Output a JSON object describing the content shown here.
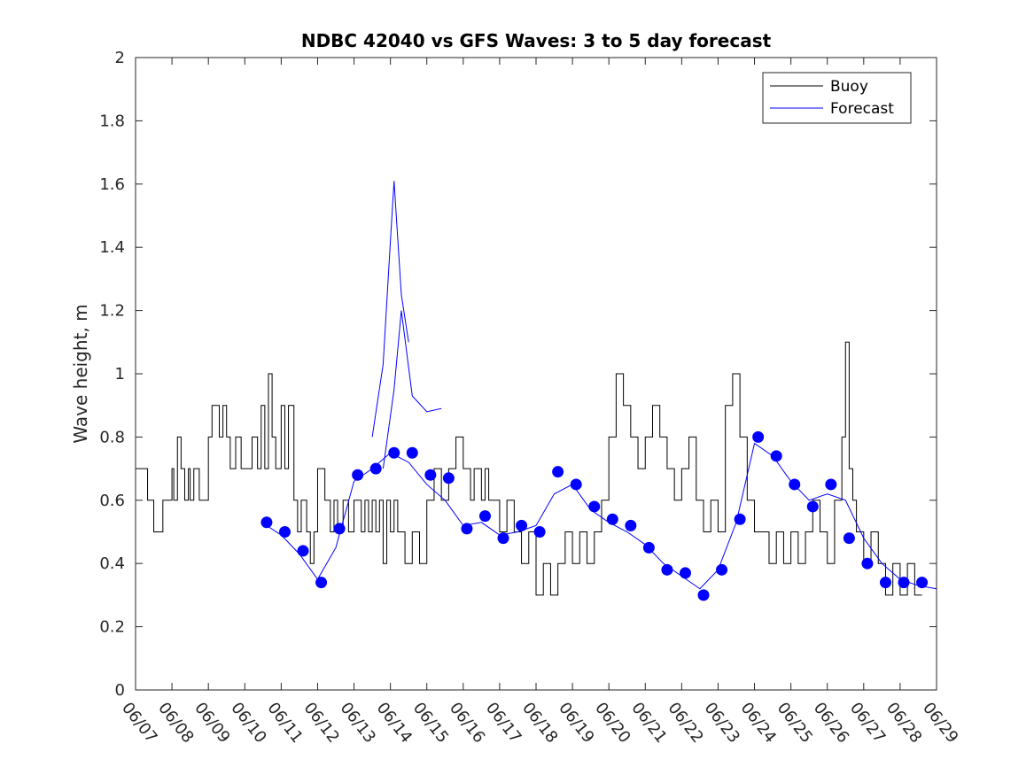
{
  "chart_data": {
    "type": "line",
    "title": "NDBC 42040 vs GFS Waves: 3 to 5 day forecast",
    "xlabel": "",
    "ylabel": "Wave height, m",
    "x_ticks": [
      "06/07",
      "06/08",
      "06/09",
      "06/10",
      "06/11",
      "06/12",
      "06/13",
      "06/14",
      "06/15",
      "06/16",
      "06/17",
      "06/18",
      "06/19",
      "06/20",
      "06/21",
      "06/22",
      "06/23",
      "06/24",
      "06/25",
      "06/26",
      "06/27",
      "06/28",
      "06/29"
    ],
    "y_ticks": [
      "0",
      "0.2",
      "0.4",
      "0.6",
      "0.8",
      "1",
      "1.2",
      "1.4",
      "1.6",
      "1.8",
      "2"
    ],
    "xlim_days": [
      0,
      22
    ],
    "ylim": [
      0,
      2
    ],
    "grid": false,
    "legend": {
      "placement": "top-right",
      "entries": [
        {
          "label": "Buoy",
          "color": "#000000"
        },
        {
          "label": "Forecast",
          "color": "#0000ff"
        }
      ]
    },
    "colors": {
      "buoy": "#000000",
      "forecast": "#0000ff"
    },
    "series": [
      {
        "name": "Buoy",
        "style": "step",
        "x": [
          0.0,
          0.33,
          0.5,
          0.55,
          0.75,
          1.0,
          1.05,
          1.15,
          1.25,
          1.35,
          1.45,
          1.5,
          1.6,
          1.75,
          1.85,
          2.0,
          2.1,
          2.3,
          2.4,
          2.5,
          2.6,
          2.75,
          2.9,
          3.0,
          3.2,
          3.35,
          3.45,
          3.55,
          3.65,
          3.75,
          3.85,
          4.0,
          4.1,
          4.2,
          4.35,
          4.45,
          4.55,
          4.7,
          4.8,
          4.9,
          5.0,
          5.2,
          5.35,
          5.45,
          5.55,
          5.7,
          5.85,
          6.0,
          6.2,
          6.3,
          6.4,
          6.5,
          6.6,
          6.7,
          6.8,
          6.9,
          7.0,
          7.1,
          7.2,
          7.4,
          7.6,
          7.8,
          8.0,
          8.2,
          8.4,
          8.6,
          8.8,
          9.0,
          9.2,
          9.3,
          9.5,
          9.6,
          9.7,
          9.8,
          10.0,
          10.2,
          10.4,
          10.6,
          10.8,
          11.0,
          11.2,
          11.4,
          11.6,
          11.8,
          12.0,
          12.2,
          12.4,
          12.6,
          12.8,
          13.0,
          13.2,
          13.4,
          13.6,
          13.8,
          14.0,
          14.2,
          14.4,
          14.6,
          14.8,
          15.0,
          15.2,
          15.4,
          15.6,
          15.8,
          16.0,
          16.2,
          16.4,
          16.6,
          16.8,
          17.0,
          17.2,
          17.4,
          17.6,
          17.8,
          18.0,
          18.2,
          18.4,
          18.6,
          18.8,
          19.0,
          19.2,
          19.4,
          19.5,
          19.6,
          19.7,
          19.8,
          20.0,
          20.2,
          20.4,
          20.6,
          20.8,
          21.0,
          21.2,
          21.4,
          21.6
        ],
        "y": [
          0.7,
          0.6,
          0.5,
          0.5,
          0.6,
          0.7,
          0.6,
          0.8,
          0.7,
          0.6,
          0.7,
          0.6,
          0.7,
          0.6,
          0.6,
          0.8,
          0.9,
          0.8,
          0.9,
          0.8,
          0.7,
          0.8,
          0.7,
          0.7,
          0.8,
          0.7,
          0.9,
          0.7,
          1.0,
          0.8,
          0.7,
          0.9,
          0.7,
          0.9,
          0.6,
          0.5,
          0.6,
          0.5,
          0.4,
          0.5,
          0.7,
          0.6,
          0.5,
          0.6,
          0.5,
          0.6,
          0.5,
          0.6,
          0.5,
          0.6,
          0.5,
          0.6,
          0.5,
          0.6,
          0.4,
          0.6,
          0.5,
          0.6,
          0.5,
          0.4,
          0.5,
          0.4,
          0.6,
          0.7,
          0.6,
          0.7,
          0.8,
          0.7,
          0.6,
          0.7,
          0.6,
          0.7,
          0.6,
          0.6,
          0.5,
          0.6,
          0.5,
          0.4,
          0.5,
          0.3,
          0.4,
          0.3,
          0.4,
          0.5,
          0.4,
          0.5,
          0.4,
          0.5,
          0.6,
          0.8,
          1.0,
          0.9,
          0.8,
          0.7,
          0.8,
          0.9,
          0.8,
          0.7,
          0.6,
          0.7,
          0.8,
          0.6,
          0.5,
          0.6,
          0.5,
          0.9,
          1.0,
          0.8,
          0.6,
          0.5,
          0.5,
          0.4,
          0.5,
          0.4,
          0.5,
          0.4,
          0.5,
          0.6,
          0.5,
          0.4,
          0.6,
          0.8,
          1.1,
          0.7,
          0.6,
          0.5,
          0.4,
          0.5,
          0.4,
          0.3,
          0.4,
          0.3,
          0.4,
          0.3,
          0.3
        ]
      },
      {
        "name": "Forecast",
        "style": "line",
        "x": [
          3.6,
          4.0,
          4.5,
          5.0,
          5.5,
          6.0,
          6.5,
          7.0,
          7.5,
          8.0,
          8.5,
          9.0,
          9.5,
          10.0,
          10.5,
          11.0,
          11.5,
          12.0,
          12.5,
          13.0,
          13.5,
          14.0,
          14.5,
          15.0,
          15.5,
          16.0,
          16.5,
          17.0,
          17.5,
          18.0,
          18.5,
          19.0,
          19.5,
          20.0,
          20.5,
          21.0,
          21.5,
          22.0
        ],
        "y": [
          0.52,
          0.49,
          0.43,
          0.35,
          0.45,
          0.66,
          0.7,
          0.75,
          0.72,
          0.65,
          0.6,
          0.52,
          0.53,
          0.49,
          0.5,
          0.52,
          0.62,
          0.65,
          0.57,
          0.53,
          0.5,
          0.46,
          0.4,
          0.36,
          0.32,
          0.38,
          0.53,
          0.78,
          0.74,
          0.66,
          0.6,
          0.62,
          0.6,
          0.48,
          0.4,
          0.35,
          0.33,
          0.32
        ]
      },
      {
        "name": "Forecast",
        "style": "markers",
        "x": [
          3.6,
          4.1,
          4.6,
          5.1,
          5.6,
          6.1,
          6.6,
          7.1,
          7.6,
          8.1,
          8.6,
          9.1,
          9.6,
          10.1,
          10.6,
          11.1,
          11.6,
          12.1,
          12.6,
          13.1,
          13.6,
          14.1,
          14.6,
          15.1,
          15.6,
          16.1,
          16.6,
          17.1,
          17.6,
          18.1,
          18.6,
          19.1,
          19.6,
          20.1,
          20.6,
          21.1,
          21.6
        ],
        "y": [
          0.53,
          0.5,
          0.44,
          0.34,
          0.51,
          0.68,
          0.7,
          0.75,
          0.75,
          0.68,
          0.67,
          0.51,
          0.55,
          0.48,
          0.52,
          0.5,
          0.69,
          0.65,
          0.58,
          0.54,
          0.52,
          0.45,
          0.38,
          0.37,
          0.3,
          0.38,
          0.54,
          0.8,
          0.74,
          0.65,
          0.58,
          0.65,
          0.48,
          0.4,
          0.34,
          0.34,
          0.34
        ]
      },
      {
        "name": "Forecast",
        "style": "line",
        "x": [
          6.5,
          6.8,
          7.0,
          7.1,
          7.3,
          7.5
        ],
        "y": [
          0.8,
          1.03,
          1.42,
          1.61,
          1.25,
          1.1
        ]
      },
      {
        "name": "Forecast",
        "style": "line",
        "x": [
          6.8,
          7.1,
          7.3,
          7.6,
          8.0,
          8.4
        ],
        "y": [
          0.7,
          0.95,
          1.2,
          0.93,
          0.88,
          0.89
        ]
      }
    ]
  }
}
